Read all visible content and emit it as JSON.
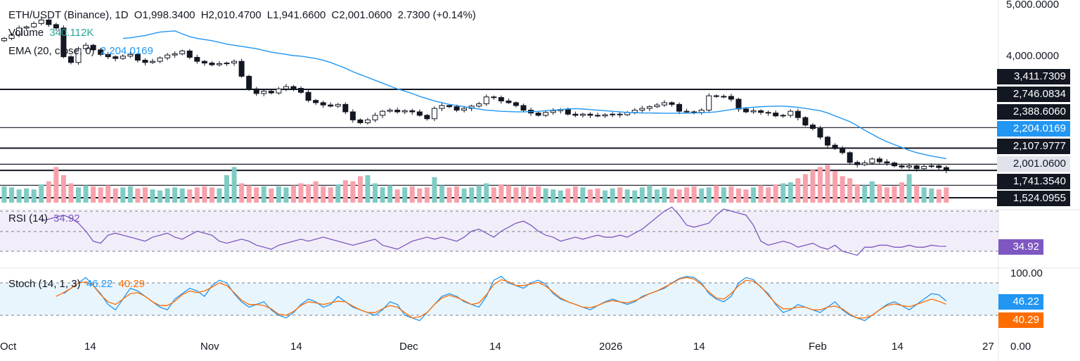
{
  "header": {
    "symbol": "ETH/USDT (Binance), 1D",
    "open": "O1,998.3400",
    "high": "H2,010.4700",
    "low": "L1,941.6600",
    "close": "C2,001.0600",
    "change": "2.7300 (+0.14%)"
  },
  "volume_legend": {
    "label": "Volume",
    "value": "340.112K"
  },
  "ema_legend": {
    "label": "EMA (20, close, 0)",
    "value": "2,204.0169"
  },
  "rsi_legend": {
    "label": "RSI (14)",
    "value": "34.92"
  },
  "stoch_legend": {
    "label": "Stoch (14, 1, 3)",
    "k": "46.22",
    "d": "40.29"
  },
  "price_axis": {
    "ticks": [
      "5,000.0000",
      "4,000.0000"
    ]
  },
  "level_tags": [
    "3,411.7309",
    "2,746.0834",
    "2,388.6060",
    "2,107.9777",
    "1,741.3540",
    "1,524.0955"
  ],
  "ema_tag": "2,204.0169",
  "last_price_tag": "2,001.0600",
  "rsi_tag": "34.92",
  "stoch_axis": {
    "top": "100.00",
    "bottom": "0.00"
  },
  "stoch_tags": {
    "k": "46.22",
    "d": "40.29"
  },
  "time_axis": [
    "Oct",
    "14",
    "Nov",
    "14",
    "Dec",
    "14",
    "2026",
    "14",
    "Feb",
    "14",
    "27"
  ],
  "colors": {
    "up": "#26a69a",
    "down": "#131722",
    "ema": "#2196f3",
    "rsi": "#7e57c2",
    "stoch_k": "#2196f3",
    "stoch_d": "#ff6d00"
  },
  "chart_data": {
    "type": "candlestick",
    "title": "ETH/USDT (Binance), 1D",
    "x_range": [
      "2025-10-01",
      "2026-02-27"
    ],
    "horizontal_levels": [
      3411.7309,
      2746.0834,
      2388.606,
      2107.9777,
      2001.06,
      1741.354,
      1524.0955
    ],
    "close": [
      4300,
      4360,
      4480,
      4500,
      4560,
      4620,
      4540,
      4480,
      3980,
      3880,
      4120,
      4180,
      4100,
      4020,
      3980,
      3950,
      3990,
      4020,
      3920,
      3880,
      3900,
      3960,
      4010,
      4030,
      4080,
      3970,
      3900,
      3870,
      3840,
      3860,
      3870,
      3900,
      3640,
      3420,
      3340,
      3380,
      3350,
      3420,
      3460,
      3430,
      3360,
      3220,
      3180,
      3140,
      3120,
      3150,
      3020,
      2880,
      2830,
      2880,
      2960,
      3030,
      3050,
      3020,
      3040,
      3020,
      2960,
      2900,
      3080,
      3130,
      3110,
      3050,
      3080,
      3120,
      3160,
      3280,
      3270,
      3210,
      3180,
      3130,
      3050,
      3000,
      2960,
      3010,
      3040,
      3060,
      2980,
      2960,
      2980,
      2960,
      2950,
      2970,
      2980,
      2970,
      3010,
      3050,
      3080,
      3110,
      3140,
      3180,
      3150,
      3030,
      3020,
      3010,
      3050,
      3300,
      3290,
      3290,
      3240,
      3070,
      3020,
      3040,
      3010,
      3000,
      2950,
      2960,
      3030,
      2920,
      2790,
      2730,
      2580,
      2440,
      2380,
      2310,
      2140,
      2100,
      2130,
      2200,
      2150,
      2130,
      2080,
      2060,
      2080,
      2030,
      2070,
      2080,
      2050,
      2001
    ],
    "ema20": [
      4300,
      4310,
      4330,
      4350,
      4380,
      4410,
      4420,
      4430,
      4380,
      4330,
      4300,
      4280,
      4260,
      4230,
      4200,
      4180,
      4160,
      4140,
      4120,
      4090,
      4060,
      4040,
      4020,
      4000,
      3990,
      3970,
      3950,
      3920,
      3880,
      3830,
      3780,
      3720,
      3670,
      3620,
      3570,
      3520,
      3470,
      3420,
      3380,
      3340,
      3290,
      3250,
      3210,
      3180,
      3150,
      3130,
      3110,
      3090,
      3070,
      3050,
      3040,
      3030,
      3025,
      3020,
      3020,
      3025,
      3030,
      3040,
      3050,
      3060,
      3070,
      3075,
      3070,
      3060,
      3050,
      3040,
      3030,
      3020,
      3010,
      3005,
      3000,
      3000,
      2998,
      2996,
      2996,
      2997,
      2998,
      3000,
      3005,
      3010,
      3020,
      3040,
      3060,
      3080,
      3090,
      3100,
      3110,
      3115,
      3120,
      3120,
      3110,
      3100,
      3080,
      3060,
      3040,
      3000,
      2950,
      2900,
      2850,
      2780,
      2700,
      2630,
      2560,
      2500,
      2450,
      2400,
      2350,
      2310,
      2280,
      2250,
      2230,
      2204
    ],
    "volume": [
      320,
      300,
      260,
      280,
      260,
      360,
      420,
      700,
      540,
      380,
      300,
      340,
      320,
      300,
      340,
      280,
      300,
      320,
      280,
      300,
      260,
      240,
      280,
      300,
      280,
      260,
      300,
      320,
      300,
      280,
      540,
      700,
      380,
      340,
      300,
      320,
      280,
      320,
      300,
      340,
      380,
      360,
      420,
      320,
      300,
      360,
      440,
      420,
      520,
      540,
      380,
      300,
      340,
      260,
      300,
      320,
      280,
      300,
      500,
      340,
      300,
      320,
      280,
      300,
      340,
      380,
      300,
      360,
      340,
      300,
      320,
      300,
      320,
      280,
      260,
      240,
      280,
      320,
      300,
      260,
      280,
      240,
      280,
      300,
      260,
      240,
      300,
      340,
      260,
      300,
      280,
      260,
      300,
      320,
      280,
      300,
      340,
      300,
      320,
      280,
      260,
      300,
      340,
      300,
      360,
      380,
      400,
      480,
      560,
      640,
      700,
      740,
      620,
      520,
      480,
      360,
      340,
      420,
      360,
      300,
      320,
      400,
      560,
      340,
      300,
      280,
      260,
      300
    ],
    "rsi": [
      60,
      62,
      64,
      66,
      63,
      58,
      50,
      40,
      38,
      46,
      48,
      46,
      44,
      42,
      40,
      44,
      46,
      48,
      44,
      42,
      46,
      50,
      48,
      46,
      40,
      38,
      40,
      42,
      40,
      36,
      34,
      32,
      36,
      38,
      40,
      42,
      40,
      42,
      44,
      42,
      40,
      38,
      36,
      38,
      40,
      42,
      36,
      34,
      32,
      36,
      40,
      42,
      44,
      42,
      44,
      42,
      40,
      44,
      50,
      52,
      48,
      44,
      50,
      54,
      58,
      60,
      56,
      50,
      46,
      44,
      40,
      42,
      44,
      42,
      44,
      46,
      44,
      44,
      46,
      44,
      48,
      52,
      58,
      64,
      70,
      74,
      66,
      56,
      54,
      56,
      58,
      66,
      72,
      70,
      68,
      66,
      56,
      40,
      36,
      38,
      40,
      38,
      34,
      36,
      38,
      34,
      32,
      36,
      30,
      28,
      26,
      34,
      34,
      36,
      36,
      34,
      34,
      36,
      34,
      34,
      36,
      35,
      34.92
    ],
    "stoch_k": [
      60,
      70,
      80,
      90,
      75,
      60,
      40,
      30,
      50,
      70,
      65,
      55,
      45,
      35,
      30,
      50,
      60,
      70,
      65,
      55,
      75,
      85,
      80,
      60,
      45,
      35,
      40,
      45,
      30,
      20,
      15,
      25,
      40,
      50,
      45,
      35,
      40,
      55,
      45,
      35,
      30,
      25,
      20,
      30,
      45,
      40,
      20,
      15,
      10,
      25,
      40,
      55,
      60,
      55,
      45,
      40,
      35,
      55,
      85,
      92,
      80,
      75,
      70,
      80,
      85,
      78,
      60,
      50,
      45,
      40,
      35,
      30,
      38,
      45,
      50,
      45,
      40,
      45,
      55,
      60,
      65,
      70,
      80,
      88,
      92,
      90,
      80,
      60,
      50,
      45,
      55,
      80,
      90,
      86,
      72,
      60,
      40,
      25,
      30,
      40,
      35,
      30,
      25,
      35,
      45,
      30,
      20,
      15,
      10,
      20,
      30,
      40,
      45,
      38,
      30,
      40,
      50,
      60,
      58,
      46.22
    ],
    "stoch_d": [
      55,
      62,
      70,
      80,
      82,
      75,
      58,
      45,
      40,
      50,
      60,
      62,
      55,
      45,
      38,
      38,
      46,
      58,
      65,
      62,
      65,
      72,
      80,
      75,
      62,
      48,
      40,
      40,
      38,
      32,
      22,
      20,
      27,
      38,
      45,
      43,
      40,
      43,
      46,
      45,
      37,
      30,
      25,
      25,
      32,
      38,
      35,
      25,
      15,
      17,
      25,
      40,
      52,
      57,
      53,
      47,
      40,
      43,
      58,
      77,
      86,
      82,
      75,
      75,
      78,
      81,
      74,
      63,
      52,
      45,
      40,
      35,
      34,
      38,
      44,
      47,
      45,
      43,
      47,
      53,
      60,
      65,
      72,
      79,
      87,
      90,
      87,
      77,
      63,
      52,
      50,
      60,
      75,
      85,
      83,
      73,
      57,
      42,
      32,
      32,
      35,
      35,
      30,
      30,
      35,
      37,
      32,
      22,
      15,
      15,
      20,
      30,
      38,
      41,
      38,
      36,
      40,
      45,
      50,
      46,
      40.29
    ]
  }
}
